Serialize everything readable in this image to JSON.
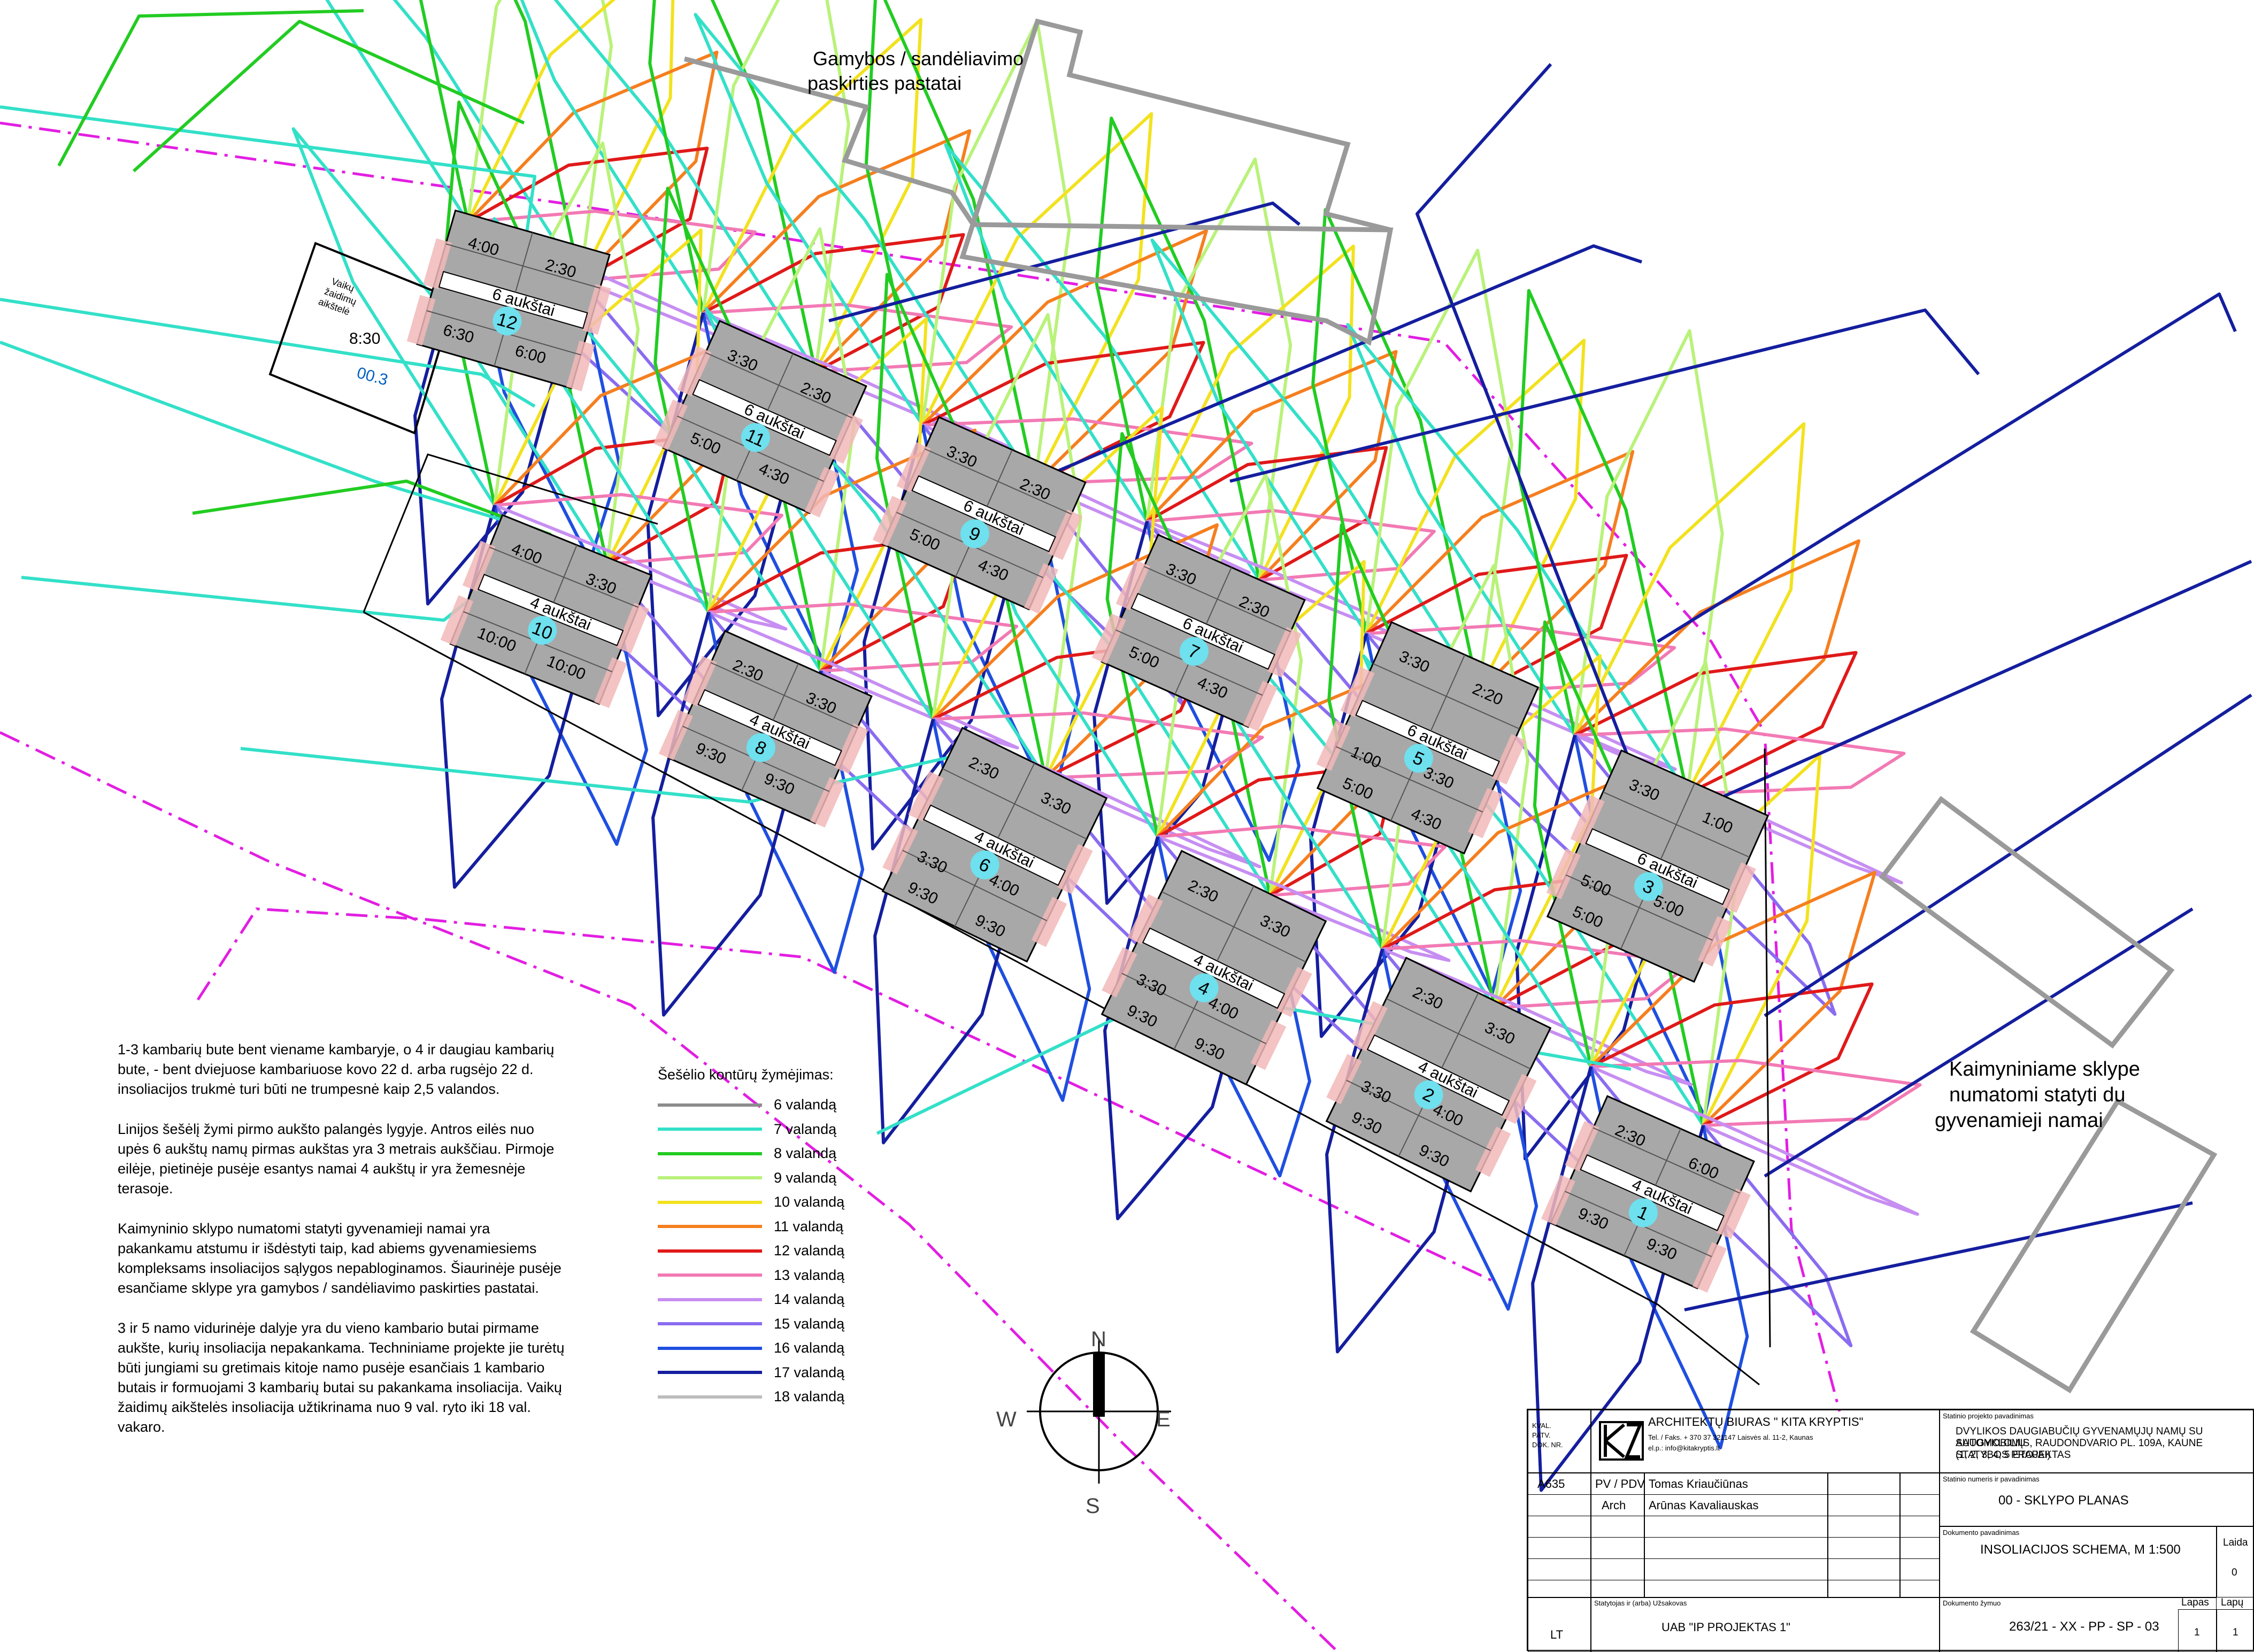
{
  "labels": {
    "production_zone_1": "Gamybos / sandėliavimo",
    "production_zone_2": "paskirties pastatai",
    "neighbour_1": "Kaimyniniame sklype",
    "neighbour_2": "numatomi statyti du",
    "neighbour_3": "gyvenamieji namai",
    "playground_1": "Vaikų",
    "playground_2": "žaidimų",
    "playground_3": "aikštelė",
    "playground_time": "8:30",
    "playground_level": "00.3"
  },
  "compass": {
    "n": "N",
    "s": "S",
    "w": "W",
    "e": "E"
  },
  "buildings": [
    {
      "num": "12",
      "floors": "6 aukštai",
      "times": [
        "4:00",
        "2:30",
        "6:30",
        "6:00"
      ]
    },
    {
      "num": "11",
      "floors": "6 aukštai",
      "times": [
        "3:30",
        "2:30",
        "5:00",
        "4:30"
      ]
    },
    {
      "num": "9",
      "floors": "6 aukštai",
      "times": [
        "3:30",
        "2:30",
        "5:00",
        "4:30"
      ]
    },
    {
      "num": "7",
      "floors": "6 aukštai",
      "times": [
        "3:30",
        "2:30",
        "5:00",
        "4:30"
      ]
    },
    {
      "num": "5",
      "floors": "6 aukštai",
      "times": [
        "3:30",
        "2:20",
        "1:00",
        "3:30",
        "5:00",
        "4:30"
      ]
    },
    {
      "num": "3",
      "floors": "6 aukštai",
      "times": [
        "3:30",
        "1:00",
        "5:00",
        "5:00",
        "5:00"
      ]
    },
    {
      "num": "10",
      "floors": "4 aukštai",
      "times": [
        "4:00",
        "3:30",
        "10:00",
        "10:00"
      ]
    },
    {
      "num": "8",
      "floors": "4 aukštai",
      "times": [
        "2:30",
        "3:30",
        "9:30",
        "9:30"
      ]
    },
    {
      "num": "6",
      "floors": "4 aukštai",
      "times": [
        "2:30",
        "3:30",
        "3:30",
        "4:00",
        "9:30",
        "9:30"
      ]
    },
    {
      "num": "4",
      "floors": "4 aukštai",
      "times": [
        "2:30",
        "3:30",
        "3:30",
        "4:00",
        "9:30",
        "9:30"
      ]
    },
    {
      "num": "2",
      "floors": "4 aukštai",
      "times": [
        "2:30",
        "3:30",
        "3:30",
        "4:00",
        "9:30",
        "9:30"
      ]
    },
    {
      "num": "1",
      "floors": "4 aukštai",
      "times": [
        "2:30",
        "6:00",
        "9:30",
        "9:30"
      ]
    }
  ],
  "notes": [
    "1-3 kambarių bute bent viename kambaryje, o 4 ir daugiau kambarių bute, - bent dviejuose kambariuose kovo 22 d. arba rugsėjo 22 d. insoliacijos trukmė turi būti ne trumpesnė kaip 2,5 valandos.",
    "Linijos šešėlį žymi pirmo aukšto palangės lygyje. Antros eilės nuo upės 6 aukštų namų pirmas aukštas yra 3 metrais aukščiau. Pirmoje eilėje, pietinėje pusėje esantys namai 4 aukštų ir yra žemesnėje terasoje.",
    "Kaimyninio sklypo numatomi statyti gyvenamieji namai yra pakankamu atstumu ir išdėstyti taip, kad abiems gyvenamiesiems kompleksams insoliacijos sąlygos nepabloginamos.  Šiaurinėje pusėje esančiame sklype yra gamybos / sandėliavimo paskirties pastatai.",
    "3 ir 5 namo vidurinėje dalyje yra du vieno kambario butai pirmame aukšte, kurių insoliacija nepakankama. Techniniame projekte jie turėtų būti jungiami su gretimais kitoje namo pusėje esančiais 1 kambario butais ir formuojami 3 kambarių butai su pakankama insoliacija. Vaikų žaidimų aikštelės insoliacija užtikrinama nuo 9 val. ryto iki 18 val. vakaro."
  ],
  "legend": {
    "title": "Šešėlio kontūrų žymėjimas:",
    "items": [
      {
        "label": "6 valandą",
        "color": "#8c8c8c"
      },
      {
        "label": "7 valandą",
        "color": "#33e0c8"
      },
      {
        "label": "8 valandą",
        "color": "#22cc22"
      },
      {
        "label": "9 valandą",
        "color": "#b9f27a"
      },
      {
        "label": "10 valandą",
        "color": "#f2e21f"
      },
      {
        "label": "11 valandą",
        "color": "#f57f1f"
      },
      {
        "label": "12 valandą",
        "color": "#e01919"
      },
      {
        "label": "13 valandą",
        "color": "#f27ab4"
      },
      {
        "label": "14 valandą",
        "color": "#c78ef2"
      },
      {
        "label": "15 valandą",
        "color": "#8a6cf0"
      },
      {
        "label": "16 valandą",
        "color": "#1f4fe0"
      },
      {
        "label": "17 valandą",
        "color": "#141e9e"
      },
      {
        "label": "18 valandą",
        "color": "#bdbdbd"
      }
    ]
  },
  "title_block": {
    "kval": "KVAL.",
    "patv": "PATV.",
    "dok": "DOK. NR.",
    "firm": "ARCHITEKTŲ  BIURAS \" KITA  KRYPTIS\"",
    "firm_contact": "Tel. / Faks. + 370 37 321147 Laisvės al. 11-2, Kaunas",
    "firm_email": "el.p.: info@kitakryptis.lt",
    "project_caption": "Statinio projekto pavadinimas",
    "project_1": "DVYLIKOS DAUGIABUČIŲ GYVENAMŲJŲ NAMŲ SU AUTOMOBILIŲ",
    "project_2": "SAUGYKLOMIS, RAUDONDVARIO PL. 109A, KAUNE STATYBOS PROJEKTAS",
    "project_3": "(1, 2, 3, 4, 5  ETAPAI)",
    "code": "A635",
    "role_1": "PV / PDV",
    "person_1": "Tomas Kriaučiūnas",
    "role_2": "Arch",
    "person_2": "Arūnas Kavaliauskas",
    "part_caption": "Statinio numeris ir pavadinimas",
    "part": "00 - SKLYPO PLANAS",
    "doc_caption": "Dokumento pavadinimas",
    "doc": "INSOLIACIJOS SCHEMA, M 1:500",
    "laida": "Laida",
    "laida_val": "0",
    "client_caption": "Statytojas ir (arba) Užsakovas",
    "client": "UAB \"IP PROJEKTAS 1\"",
    "country": "LT",
    "docno_caption": "Dokumento žymuo",
    "docno": "263/21 - XX - PP - SP - 03",
    "lapas": "Lapas",
    "lapas_val": "1",
    "lapu": "Lapų",
    "lapu_val": "1"
  }
}
